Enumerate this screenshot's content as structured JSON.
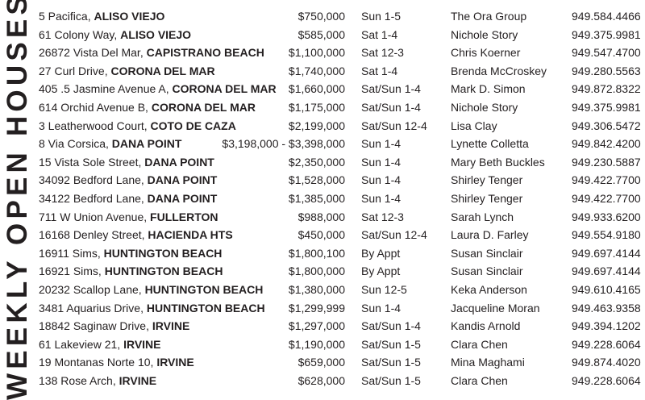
{
  "title": "WEEKLY OPEN HOUSES",
  "listings": [
    {
      "street": "5 Pacifica,",
      "city": "ALISO VIEJO",
      "price": "$750,000",
      "time": "Sun 1-5",
      "agent": "The Ora Group",
      "phone": "949.584.4466"
    },
    {
      "street": "61 Colony Way,",
      "city": "ALISO VIEJO",
      "price": "$585,000",
      "time": "Sat 1-4",
      "agent": "Nichole Story",
      "phone": "949.375.9981"
    },
    {
      "street": "26872 Vista Del Mar,",
      "city": "CAPISTRANO BEACH",
      "price": "$1,100,000",
      "time": "Sat 12-3",
      "agent": "Chris Koerner",
      "phone": "949.547.4700"
    },
    {
      "street": "27 Curl Drive,",
      "city": "CORONA DEL MAR",
      "price": "$1,740,000",
      "time": "Sat 1-4",
      "agent": "Brenda McCroskey",
      "phone": "949.280.5563"
    },
    {
      "street": "405 .5 Jasmine Avenue A,",
      "city": "CORONA DEL MAR",
      "price": "$1,660,000",
      "time": "Sat/Sun 1-4",
      "agent": "Mark D. Simon",
      "phone": "949.872.8322"
    },
    {
      "street": "614 Orchid Avenue B,",
      "city": "CORONA DEL MAR",
      "price": "$1,175,000",
      "time": "Sat/Sun 1-4",
      "agent": "Nichole Story",
      "phone": "949.375.9981"
    },
    {
      "street": "3 Leatherwood Court,",
      "city": "COTO DE CAZA",
      "price": "$2,199,000",
      "time": "Sat/Sun 12-4",
      "agent": "Lisa Clay",
      "phone": "949.306.5472"
    },
    {
      "street": "8 Via Corsica,",
      "city": "DANA POINT",
      "price": "$3,198,000 - $3,398,000",
      "time": "Sun 1-4",
      "agent": "Lynette Colletta",
      "phone": "949.842.4200"
    },
    {
      "street": "15 Vista Sole Street,",
      "city": "DANA POINT",
      "price": "$2,350,000",
      "time": "Sun 1-4",
      "agent": "Mary Beth Buckles",
      "phone": "949.230.5887"
    },
    {
      "street": "34092 Bedford Lane,",
      "city": "DANA POINT",
      "price": "$1,528,000",
      "time": "Sun 1-4",
      "agent": "Shirley Tenger",
      "phone": "949.422.7700"
    },
    {
      "street": "34122 Bedford Lane,",
      "city": "DANA POINT",
      "price": "$1,385,000",
      "time": "Sun 1-4",
      "agent": "Shirley Tenger",
      "phone": "949.422.7700"
    },
    {
      "street": "711 W Union Avenue,",
      "city": "FULLERTON",
      "price": "$988,000",
      "time": "Sat 12-3",
      "agent": "Sarah Lynch",
      "phone": "949.933.6200"
    },
    {
      "street": "16168 Denley Street,",
      "city": "HACIENDA HTS",
      "price": "$450,000",
      "time": "Sat/Sun 12-4",
      "agent": "Laura D. Farley",
      "phone": "949.554.9180"
    },
    {
      "street": "16911 Sims,",
      "city": "HUNTINGTON BEACH",
      "price": "$1,800,100",
      "time": "By Appt",
      "agent": "Susan Sinclair",
      "phone": "949.697.4144"
    },
    {
      "street": "16921 Sims,",
      "city": "HUNTINGTON BEACH",
      "price": "$1,800,000",
      "time": "By Appt",
      "agent": "Susan Sinclair",
      "phone": "949.697.4144"
    },
    {
      "street": "20232 Scallop Lane,",
      "city": "HUNTINGTON BEACH",
      "price": "$1,380,000",
      "time": "Sun 12-5",
      "agent": "Keka Anderson",
      "phone": "949.610.4165"
    },
    {
      "street": "3481 Aquarius Drive,",
      "city": "HUNTINGTON BEACH",
      "price": "$1,299,999",
      "time": "Sun 1-4",
      "agent": "Jacqueline Moran",
      "phone": "949.463.9358"
    },
    {
      "street": "18842 Saginaw Drive,",
      "city": "IRVINE",
      "price": "$1,297,000",
      "time": "Sat/Sun 1-4",
      "agent": "Kandis Arnold",
      "phone": "949.394.1202"
    },
    {
      "street": "61 Lakeview 21,",
      "city": "IRVINE",
      "price": "$1,190,000",
      "time": "Sat/Sun 1-5",
      "agent": "Clara Chen",
      "phone": "949.228.6064"
    },
    {
      "street": "19 Montanas Norte 10,",
      "city": "IRVINE",
      "price": "$659,000",
      "time": "Sat/Sun 1-5",
      "agent": "Mina Maghami",
      "phone": "949.874.4020"
    },
    {
      "street": "138 Rose Arch,",
      "city": "IRVINE",
      "price": "$628,000",
      "time": "Sat/Sun 1-5",
      "agent": "Clara Chen",
      "phone": "949.228.6064"
    }
  ]
}
